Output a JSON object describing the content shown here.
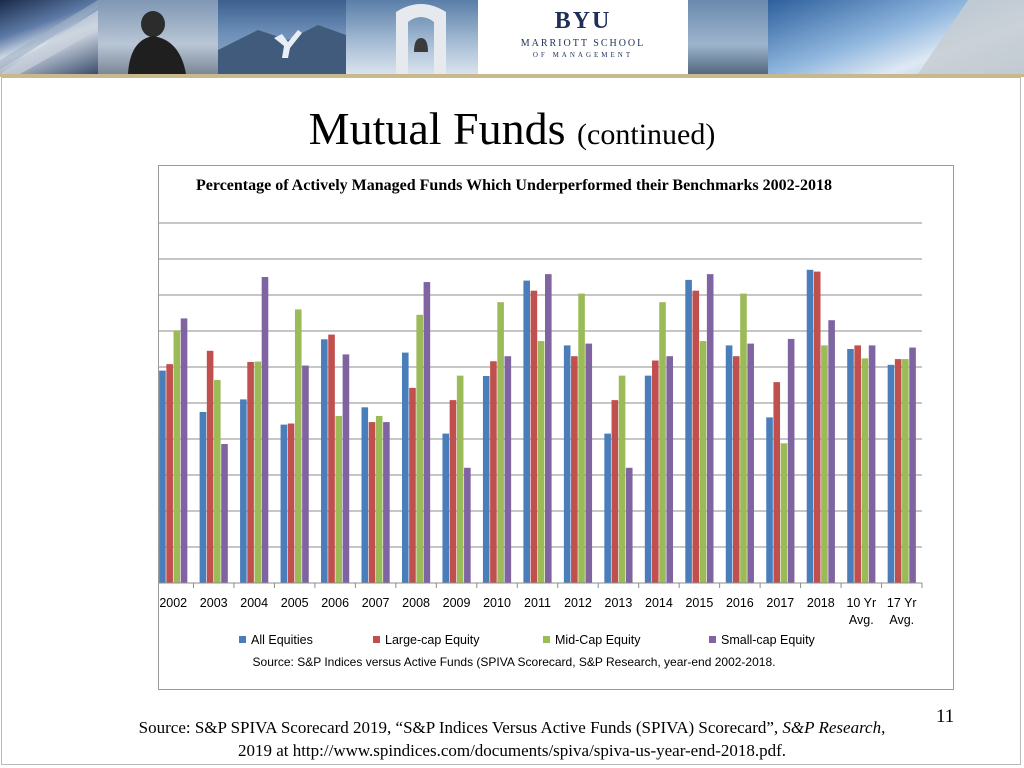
{
  "slide": {
    "title": "Mutual Funds",
    "title_sub": "(continued)",
    "page_number": "11",
    "source_line1_a": "Source: S&P SPIVA Scorecard 2019, “S&P Indices Versus Active Funds (SPIVA) Scorecard”, ",
    "source_line1_em": "S&P Research",
    "source_line1_b": ",",
    "source_line2": "2019 at http://www.spindices.com/documents/spiva/spiva-us-year-end-2018.pdf."
  },
  "banner": {
    "logo_main": "BYU",
    "logo_line1": "MARRIOTT SCHOOL",
    "logo_line2": "OF MANAGEMENT"
  },
  "colors": {
    "all_equities": "#4a7ebb",
    "large_cap": "#c0504d",
    "mid_cap": "#9bbb59",
    "small_cap": "#8064a2"
  },
  "chart_data": {
    "type": "bar",
    "title": "Percentage of Actively Managed Funds Which Underperformed their Benchmarks 2002-2018",
    "xlabel": "",
    "ylabel": "",
    "ylim": [
      0,
      100
    ],
    "yticks": [
      "0",
      "10",
      "20",
      "30",
      "40",
      "50",
      "60",
      "70",
      "80",
      "90",
      "100"
    ],
    "grid": true,
    "legend_position": "bottom",
    "categories": [
      [
        "2002"
      ],
      [
        "2003"
      ],
      [
        "2004"
      ],
      [
        "2005"
      ],
      [
        "2006"
      ],
      [
        "2007"
      ],
      [
        "2008"
      ],
      [
        "2009"
      ],
      [
        "2010"
      ],
      [
        "2011"
      ],
      [
        "2012"
      ],
      [
        "2013"
      ],
      [
        "2014"
      ],
      [
        "2015"
      ],
      [
        "2016"
      ],
      [
        "2017"
      ],
      [
        "2018"
      ],
      [
        "10 Yr",
        "Avg."
      ],
      [
        "17 Yr",
        "Avg."
      ]
    ],
    "series": [
      {
        "name": "All Equities",
        "values": [
          59,
          47.5,
          51,
          44,
          67.7,
          48.8,
          64,
          41.5,
          57.5,
          84,
          66,
          41.5,
          57.6,
          84.2,
          66,
          46,
          87,
          65,
          60.6
        ]
      },
      {
        "name": "Large-cap Equity",
        "values": [
          60.8,
          64.5,
          61.4,
          44.3,
          69,
          44.7,
          54.2,
          50.8,
          61.6,
          81.2,
          63,
          50.8,
          61.8,
          81.2,
          63,
          55.8,
          86.5,
          66,
          62.2
        ]
      },
      {
        "name": "Mid-Cap Equity",
        "values": [
          70.2,
          56.4,
          61.5,
          76,
          46.4,
          46.4,
          74.5,
          57.6,
          78,
          67.2,
          80.4,
          57.6,
          78,
          67.2,
          80.4,
          38.8,
          66,
          62.4,
          62.2
        ]
      },
      {
        "name": "Small-cap Equity",
        "values": [
          73.5,
          38.6,
          85,
          60.4,
          63.5,
          44.7,
          83.6,
          32,
          63,
          85.8,
          66.5,
          32,
          63,
          85.8,
          66.5,
          67.8,
          73,
          66,
          65.4
        ]
      }
    ],
    "footnote": "Source: S&P Indices versus Active Funds (SPIVA Scorecard, S&P Research, year-end 2002-2018."
  }
}
